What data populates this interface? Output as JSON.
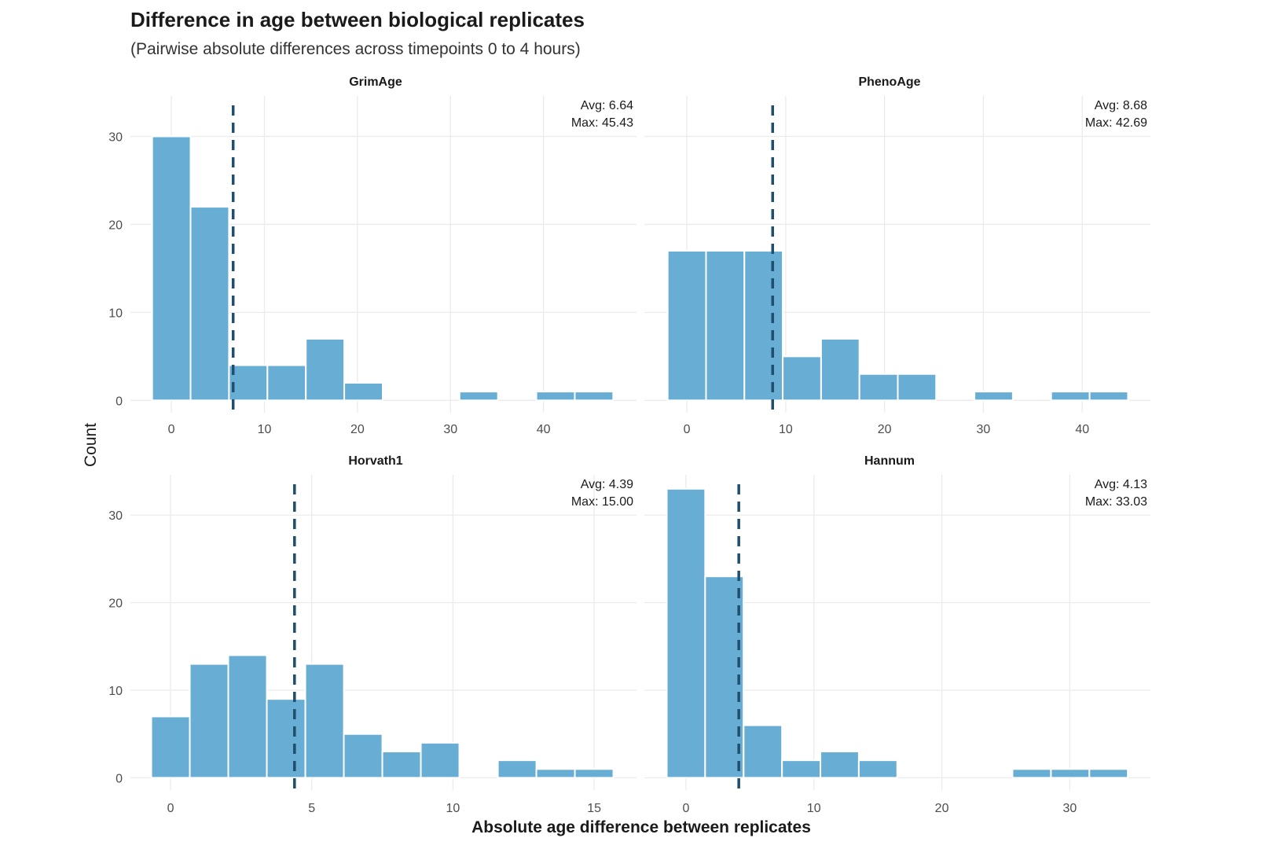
{
  "chart_data": {
    "type": "bar",
    "subtype": "histogram-facets",
    "title": "Difference in age between biological replicates",
    "subtitle": "(Pairwise absolute differences across timepoints 0 to 4 hours)",
    "xlabel": "Absolute age difference between replicates",
    "ylabel": "Count",
    "grid": true,
    "legend": "none",
    "colors": {
      "bar": "#67add4",
      "mean_line": "#1f4e6e",
      "grid": "#ebebeb"
    },
    "ylim": [
      -1.4,
      34.6
    ],
    "yticks": [
      0,
      10,
      20,
      30
    ],
    "panels": [
      {
        "name": "GrimAge",
        "bin_width": 4.13,
        "bin_centers": [
          0,
          4.13,
          8.26,
          12.39,
          16.52,
          20.65,
          24.78,
          28.91,
          33.04,
          37.17,
          41.3,
          45.43
        ],
        "counts": [
          30,
          22,
          4,
          4,
          7,
          2,
          0,
          0,
          1,
          0,
          1,
          1
        ],
        "mean": 6.64,
        "xlim": [
          -4.4,
          50
        ],
        "xticks": [
          0,
          10,
          20,
          30,
          40
        ],
        "annotation": [
          "Avg: 6.64",
          "Max: 45.43"
        ]
      },
      {
        "name": "PhenoAge",
        "bin_width": 3.88,
        "bin_centers": [
          0,
          3.88,
          7.76,
          11.64,
          15.52,
          19.4,
          23.28,
          27.16,
          31.04,
          34.92,
          38.8,
          42.69
        ],
        "counts": [
          17,
          17,
          17,
          5,
          7,
          3,
          3,
          0,
          1,
          0,
          1,
          1
        ],
        "mean": 8.68,
        "xlim": [
          -4.3,
          46.9
        ],
        "xticks": [
          0,
          10,
          20,
          30,
          40
        ],
        "annotation": [
          "Avg: 8.68",
          "Max: 42.69"
        ]
      },
      {
        "name": "Horvath1",
        "bin_width": 1.364,
        "bin_centers": [
          0,
          1.364,
          2.727,
          4.091,
          5.455,
          6.818,
          8.182,
          9.545,
          10.909,
          12.273,
          13.636,
          15.0
        ],
        "counts": [
          7,
          13,
          14,
          9,
          13,
          5,
          3,
          4,
          0,
          2,
          1,
          1
        ],
        "mean": 4.39,
        "xlim": [
          -1.42,
          16.5
        ],
        "xticks": [
          0,
          5,
          10,
          15
        ],
        "annotation": [
          "Avg: 4.39",
          "Max: 15.00"
        ]
      },
      {
        "name": "Hannum",
        "bin_width": 3.0,
        "bin_centers": [
          0,
          3.0,
          6.01,
          9.01,
          12.01,
          15.01,
          18.02,
          21.02,
          24.02,
          27.02,
          30.03,
          33.03
        ],
        "counts": [
          33,
          23,
          6,
          2,
          3,
          2,
          0,
          0,
          0,
          1,
          1,
          1
        ],
        "mean": 4.13,
        "xlim": [
          -3.25,
          36.3
        ],
        "xticks": [
          0,
          10,
          20,
          30
        ],
        "annotation": [
          "Avg: 4.13",
          "Max: 33.03"
        ]
      }
    ]
  }
}
